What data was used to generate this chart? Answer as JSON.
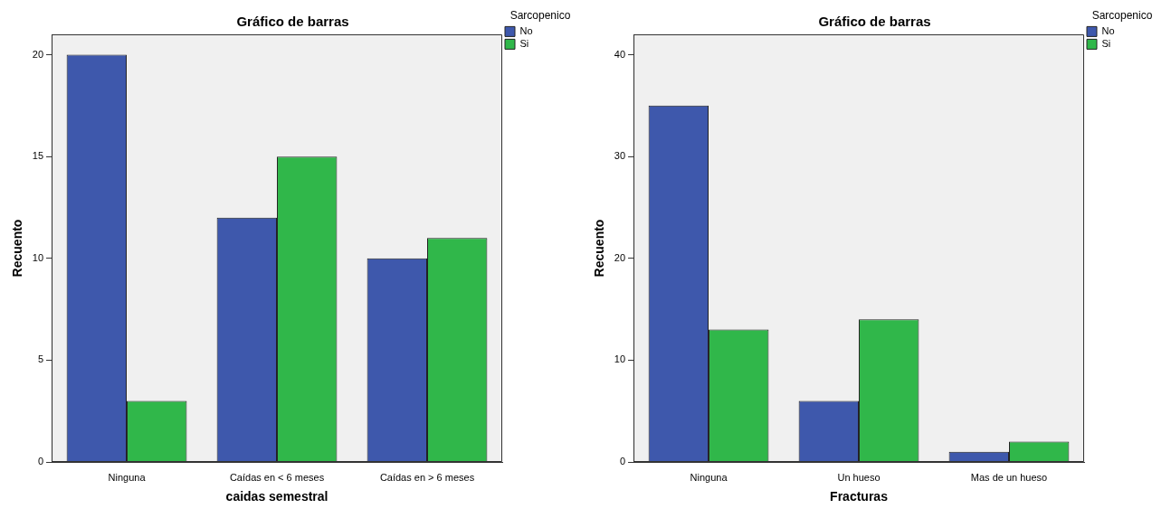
{
  "chart_data": [
    {
      "type": "bar",
      "title": "Gráfico de barras",
      "xlabel": "caidas semestral",
      "ylabel": "Recuento",
      "legend_title": "Sarcopenico",
      "legend": "top right",
      "grid": false,
      "categories": [
        "Ninguna",
        "Caídas en < 6 meses",
        "Caídas en > 6 meses"
      ],
      "ylim": [
        0,
        21
      ],
      "yticks": [
        0,
        5,
        10,
        15,
        20
      ],
      "series": [
        {
          "name": "No",
          "color": "#3e58ac",
          "values": [
            20,
            12,
            10
          ]
        },
        {
          "name": "Si",
          "color": "#30b74a",
          "values": [
            3,
            15,
            11
          ]
        }
      ]
    },
    {
      "type": "bar",
      "title": "Gráfico de barras",
      "xlabel": "Fracturas",
      "ylabel": "Recuento",
      "legend_title": "Sarcopenico",
      "legend": "top right",
      "grid": false,
      "categories": [
        "Ninguna",
        "Un hueso",
        "Mas de un hueso"
      ],
      "ylim": [
        0,
        42
      ],
      "yticks": [
        0,
        10,
        20,
        30,
        40
      ],
      "series": [
        {
          "name": "No",
          "color": "#3e58ac",
          "values": [
            35,
            6,
            1
          ]
        },
        {
          "name": "Si",
          "color": "#30b74a",
          "values": [
            13,
            14,
            2
          ]
        }
      ]
    }
  ]
}
